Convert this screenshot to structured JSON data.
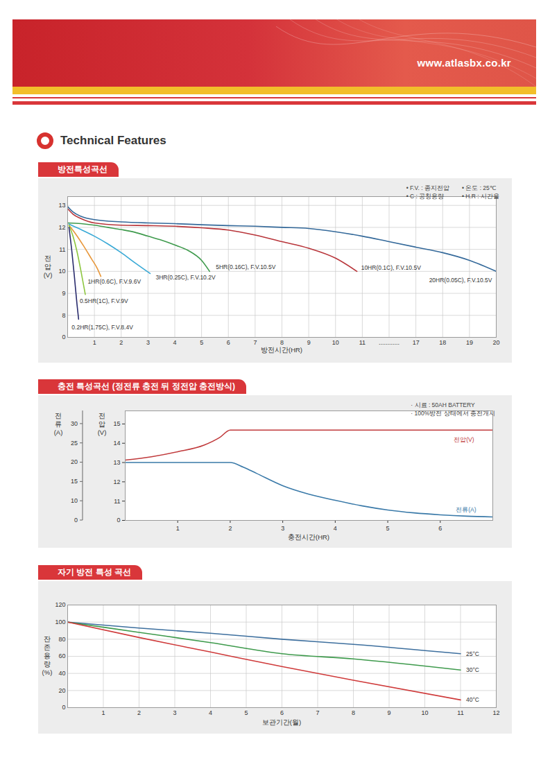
{
  "page": {
    "url": "www.atlasbx.co.kr",
    "heading": "Technical Features"
  },
  "chart_data": [
    {
      "type": "line",
      "title": "방전특성곡선",
      "notes": [
        "• F.V. : 종지전압",
        "• 온도 : 25℃",
        "• C : 공칭용량",
        "• H.R : 시간율"
      ],
      "x_label": "방전시간(HR)",
      "y_label": "전압 (V)",
      "xlim": [
        0,
        20
      ],
      "ylim": [
        0,
        13.4
      ],
      "xticks": [
        1,
        2,
        3,
        4,
        5,
        6,
        7,
        8,
        9,
        10,
        11,
        {
          "value": 14,
          "label": "............"
        },
        17,
        18,
        19,
        20
      ],
      "yticks": [
        0,
        8,
        9,
        10,
        11,
        12,
        13
      ],
      "grid": true,
      "series": [
        {
          "name": "20HR(0.05C), F.V.10.5V",
          "color": "#34699a",
          "x": [
            0,
            0.2,
            0.5,
            1,
            2,
            3,
            4,
            5,
            6,
            7,
            8,
            9,
            10,
            11,
            14,
            17,
            18,
            19,
            20
          ],
          "values": [
            12.95,
            12.7,
            12.5,
            12.35,
            12.25,
            12.2,
            12.17,
            12.12,
            12.08,
            12.05,
            12.0,
            11.95,
            11.8,
            11.6,
            11.35,
            11.1,
            10.85,
            10.5,
            10.0
          ]
        },
        {
          "name": "10HR(0.1C), F.V.10.5V",
          "color": "#b8353a",
          "x": [
            0,
            0.2,
            0.5,
            1,
            2,
            3,
            4,
            5,
            6,
            7,
            8,
            9,
            10,
            10.8
          ],
          "values": [
            12.85,
            12.6,
            12.4,
            12.2,
            12.1,
            12.08,
            12.05,
            11.98,
            11.88,
            11.65,
            11.35,
            11.05,
            10.6,
            10.0
          ]
        },
        {
          "name": "5HR(0.16C), F.V.10.5V",
          "color": "#3e9a4c",
          "x": [
            0,
            0.5,
            1,
            1.5,
            2,
            2.5,
            3,
            3.5,
            4,
            4.5,
            5,
            5.3
          ],
          "values": [
            12.2,
            12.17,
            12.1,
            12.0,
            11.9,
            11.78,
            11.6,
            11.42,
            11.2,
            10.95,
            10.5,
            10.0
          ]
        },
        {
          "name": "3HR(0.25C), F.V.10.2V",
          "color": "#38a9d6",
          "x": [
            0.05,
            0.5,
            1,
            1.5,
            2,
            2.5,
            3.08
          ],
          "values": [
            12.15,
            11.9,
            11.6,
            11.25,
            10.85,
            10.4,
            9.9
          ]
        },
        {
          "name": "1HR(0.6C), F.V.9.6V",
          "color": "#e8973a",
          "x": [
            0.05,
            0.3,
            0.6,
            0.9,
            1.1,
            1.24
          ],
          "values": [
            12.1,
            11.7,
            11.15,
            10.55,
            10.15,
            9.77
          ]
        },
        {
          "name": "0.5HR(1C), F.V.9V",
          "color": "#8dc63f",
          "x": [
            0.05,
            0.2,
            0.35,
            0.5,
            0.66
          ],
          "values": [
            12.1,
            11.6,
            10.9,
            10.0,
            8.95
          ]
        },
        {
          "name": "0.2HR(1.75C), F.V.8.4V",
          "color": "#2b2d6e",
          "x": [
            0.05,
            0.15,
            0.25,
            0.35,
            0.41
          ],
          "values": [
            12.0,
            11.0,
            9.8,
            8.5,
            6.6
          ]
        }
      ]
    },
    {
      "type": "line",
      "title": "충전 특성곡선 (정전류 충전 뒤 정전압 충전방식)",
      "notes": [
        "· 시료 : 50AH BATTERY",
        "· 100%방전 상태에서 충전개시"
      ],
      "x_label": "충전시간(HR)",
      "y_label": "전압 (V)",
      "y2_label": "전류 (A)",
      "xlim": [
        0,
        7
      ],
      "ylim": [
        0,
        15.68
      ],
      "y2lim": [
        0,
        33.4
      ],
      "xticks": [
        1,
        2,
        3,
        4,
        5,
        6
      ],
      "yticks": [
        0,
        11,
        12,
        13,
        14,
        15
      ],
      "y2ticks": [
        0,
        10,
        15,
        20,
        25,
        30
      ],
      "grid": false,
      "series": [
        {
          "name": "전압(V)",
          "color": "#c0393b",
          "x": [
            0,
            0.5,
            1,
            1.5,
            1.8,
            2,
            7
          ],
          "values": [
            13.13,
            13.3,
            13.56,
            13.9,
            14.3,
            14.68,
            14.68
          ]
        },
        {
          "name": "전류(A)",
          "color": "#3979a8",
          "axis": "y2",
          "x": [
            0,
            2,
            2.25,
            2.5,
            3,
            3.5,
            4,
            4.5,
            5,
            5.5,
            6,
            6.5,
            7
          ],
          "values": [
            20,
            20,
            18.8,
            17.2,
            14,
            11.8,
            10.2,
            7.6,
            5.4,
            3.9,
            2.9,
            2.2,
            1.8
          ]
        }
      ]
    },
    {
      "type": "line",
      "title": "자기 방전 특성 곡선",
      "x_label": "보관기간(월)",
      "y_label": "잔존용량 (%)",
      "xlim": [
        0,
        12
      ],
      "ylim": [
        0,
        120
      ],
      "xticks": [
        1,
        2,
        3,
        4,
        5,
        6,
        7,
        8,
        9,
        10,
        11,
        12
      ],
      "yticks": [
        0,
        20,
        40,
        60,
        80,
        100,
        120
      ],
      "grid": true,
      "series": [
        {
          "name": "25°C",
          "color": "#3d6f9e",
          "x": [
            0,
            2,
            4,
            6,
            8,
            11
          ],
          "values": [
            100,
            93,
            87,
            80,
            74,
            63
          ]
        },
        {
          "name": "30°C",
          "color": "#3e9a4c",
          "x": [
            0,
            2,
            4,
            6,
            8,
            11
          ],
          "values": [
            100,
            88,
            76,
            63,
            57,
            44
          ]
        },
        {
          "name": "40°C",
          "color": "#cf3a3a",
          "x": [
            0,
            2,
            4,
            6,
            8,
            11
          ],
          "values": [
            100,
            82,
            65,
            48,
            32,
            9
          ]
        }
      ]
    }
  ]
}
